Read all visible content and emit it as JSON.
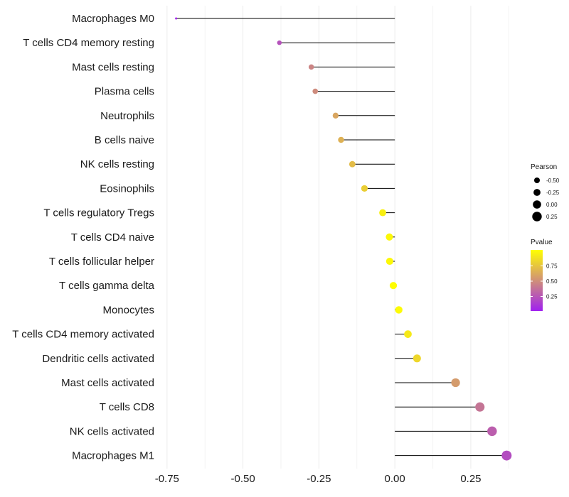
{
  "chart_data": {
    "type": "lollipop",
    "categories": [
      "Macrophages M0",
      "T cells CD4 memory resting",
      "Mast cells resting",
      "Plasma cells",
      "Neutrophils",
      "B cells naive",
      "NK cells resting",
      "Eosinophils",
      "T cells regulatory  Tregs ",
      "T cells CD4 naive",
      "T cells follicular helper",
      "T cells gamma delta",
      "Monocytes",
      "T cells CD4 memory activated",
      "Dendritic cells activated",
      "Mast cells activated",
      "T cells CD8",
      "NK cells activated",
      "Macrophages M1"
    ],
    "pearson": [
      -0.72,
      -0.38,
      -0.275,
      -0.262,
      -0.195,
      -0.177,
      -0.14,
      -0.1,
      -0.04,
      -0.018,
      -0.017,
      -0.005,
      0.013,
      0.043,
      0.073,
      0.2,
      0.28,
      0.32,
      0.368
    ],
    "pvalue": [
      0.02,
      0.22,
      0.45,
      0.48,
      0.6,
      0.65,
      0.7,
      0.78,
      0.93,
      0.97,
      0.97,
      0.99,
      0.98,
      0.9,
      0.82,
      0.55,
      0.38,
      0.28,
      0.2
    ],
    "xlim": [
      -0.78,
      0.4
    ],
    "xticks": [
      -0.75,
      -0.5,
      -0.25,
      0.0,
      0.25
    ],
    "xtick_labels": [
      "-0.75",
      "-0.50",
      "-0.25",
      "0.00",
      "0.25"
    ],
    "minor_gridlines": [
      -0.625,
      -0.375,
      -0.125,
      0.125,
      0.375
    ],
    "grid": true,
    "xlabel": "",
    "ylabel": "",
    "legend": {
      "size_title": "Pearson",
      "size_values": [
        -0.5,
        -0.25,
        0.0,
        0.25
      ],
      "size_labels": [
        "-0.50",
        "-0.25",
        "0.00",
        "0.25"
      ],
      "color_title": "Pvalue",
      "color_values": [
        0.25,
        0.5,
        0.75
      ],
      "color_labels": [
        "0.25",
        "0.50",
        "0.75"
      ],
      "color_range": [
        0.0,
        1.0
      ],
      "colormap": [
        "#a020f0",
        "#ffff00"
      ],
      "placement": "right"
    }
  }
}
